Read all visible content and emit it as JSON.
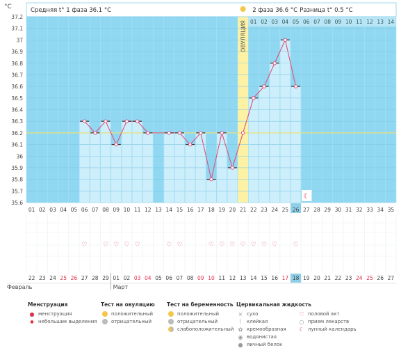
{
  "header": {
    "unit_label": "°C",
    "phase1_avg": "Средняя t° 1 фаза 36.1 °C",
    "phase2_avg": "2 фаза 36.6 °C",
    "difference": "Разница t° 0.5 °C",
    "ovulation_label": "ОВУЛЯЦИЯ"
  },
  "colors": {
    "chart_bg": "#90d7f1",
    "bar_fill": "#cdeefb",
    "line": "#e0507a",
    "coverline": "#e8e07a",
    "ovulation_band": "#fdf2a4",
    "weekend_red": "#e0304a",
    "current_day_bg": "#8ecfe8"
  },
  "chart_data": {
    "type": "line",
    "ylabel": "°C",
    "ylim": [
      35.6,
      37.2
    ],
    "yticks": [
      35.6,
      35.7,
      35.8,
      35.9,
      36,
      36.1,
      36.2,
      36.3,
      36.4,
      36.5,
      36.6,
      36.7,
      36.8,
      36.9,
      37,
      37.1,
      37.2
    ],
    "cover_line": 36.2,
    "cycle_days": [
      "01",
      "02",
      "03",
      "04",
      "05",
      "06",
      "07",
      "08",
      "09",
      "10",
      "11",
      "12",
      "13",
      "14",
      "15",
      "16",
      "17",
      "18",
      "19",
      "20",
      "21",
      "22",
      "23",
      "24",
      "25",
      "26",
      "27",
      "28",
      "29",
      "30",
      "31",
      "32",
      "33",
      "34",
      "35"
    ],
    "current_day": "26",
    "ovulation_day": "21",
    "post_ovulation_days": [
      "01",
      "02",
      "03",
      "04",
      "05",
      "06",
      "07",
      "08",
      "09",
      "10",
      "11",
      "12",
      "13",
      "14"
    ],
    "temperatures": [
      null,
      null,
      null,
      null,
      null,
      36.3,
      36.2,
      36.3,
      36.1,
      36.3,
      36.3,
      36.2,
      null,
      36.2,
      36.2,
      36.1,
      36.2,
      35.8,
      36.2,
      35.9,
      36.2,
      36.5,
      36.6,
      36.8,
      37.0,
      36.6,
      null,
      null,
      null,
      null,
      null,
      null,
      null,
      null,
      null
    ],
    "bar_start_day": "06",
    "bar_end_day": "26",
    "heart_days": [
      "06",
      "08",
      "09",
      "10",
      "11",
      "14",
      "15",
      "18",
      "19",
      "20",
      "21",
      "22",
      "23",
      "24",
      "26"
    ],
    "moon_day": "27",
    "calendar_dates": [
      "22",
      "23",
      "24",
      "25",
      "26",
      "27",
      "28",
      "29",
      "01",
      "02",
      "03",
      "04",
      "05",
      "06",
      "07",
      "08",
      "09",
      "10",
      "11",
      "12",
      "13",
      "14",
      "15",
      "16",
      "17",
      "18",
      "19",
      "20",
      "21",
      "22",
      "23",
      "24",
      "25",
      "26",
      "27"
    ],
    "calendar_date_colors": [
      "#444",
      "#444",
      "#444",
      "#e0304a",
      "#e0304a",
      "#444",
      "#444",
      "#444",
      "#444",
      "#444",
      "#e0304a",
      "#e0304a",
      "#444",
      "#444",
      "#444",
      "#444",
      "#e0304a",
      "#e0304a",
      "#444",
      "#444",
      "#444",
      "#444",
      "#444",
      "#444",
      "#e0304a",
      "#444",
      "#444",
      "#444",
      "#444",
      "#444",
      "#444",
      "#e0304a",
      "#e0304a",
      "#444",
      "#444"
    ],
    "months": [
      {
        "label": "Февраль",
        "start_index": 0
      },
      {
        "label": "Март",
        "start_index": 8
      }
    ]
  },
  "legend": {
    "menstruation": {
      "title": "Менструация",
      "items": [
        "менструация",
        "небольшие выделения"
      ]
    },
    "ovulation_test": {
      "title": "Тест на овуляцию",
      "items": [
        "положительный",
        "отрицательный"
      ]
    },
    "pregnancy_test": {
      "title": "Тест на беременность",
      "items": [
        "положительный",
        "отрицательный",
        "слабоположительный"
      ]
    },
    "cervical_fluid": {
      "title": "Цервикальная жидкость",
      "items": [
        "сухо",
        "клейкая",
        "кремообразная",
        "водянистая",
        "яичный белок"
      ]
    },
    "other": {
      "items": [
        "половой акт",
        "прием лекарств",
        "лунный календарь"
      ]
    }
  }
}
